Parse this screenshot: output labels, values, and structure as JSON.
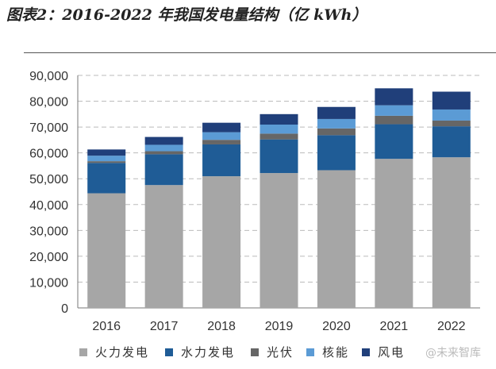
{
  "title": "图表2：2016-2022 年我国发电量结构（亿 kWh）",
  "watermark": "@未来智库",
  "chart_data": {
    "type": "bar",
    "stacked": true,
    "categories": [
      "2016",
      "2017",
      "2018",
      "2019",
      "2020",
      "2021",
      "2022"
    ],
    "ylim": [
      0,
      90000
    ],
    "yticks": [
      "0",
      "10,000",
      "20,000",
      "30,000",
      "40,000",
      "50,000",
      "60,000",
      "70,000",
      "80,000",
      "90,000"
    ],
    "grid": true,
    "legend": "bottom",
    "series": [
      {
        "name": "火力发电",
        "color": "#a6a6a6",
        "values": [
          44371,
          47546,
          50963,
          52201,
          53302,
          57702,
          58300
        ]
      },
      {
        "name": "水力发电",
        "color": "#1f5c96",
        "values": [
          11748,
          11931,
          12321,
          13021,
          13552,
          13390,
          12000
        ]
      },
      {
        "name": "光伏",
        "color": "#666666",
        "values": [
          665,
          1178,
          1775,
          2238,
          2611,
          3270,
          2200
        ]
      },
      {
        "name": "核能",
        "color": "#5b9bd5",
        "values": [
          2132,
          2481,
          2950,
          3487,
          3662,
          4075,
          4300
        ]
      },
      {
        "name": "风电",
        "color": "#203f7a",
        "values": [
          2409,
          3034,
          3660,
          4057,
          4665,
          6556,
          6900
        ]
      }
    ]
  }
}
